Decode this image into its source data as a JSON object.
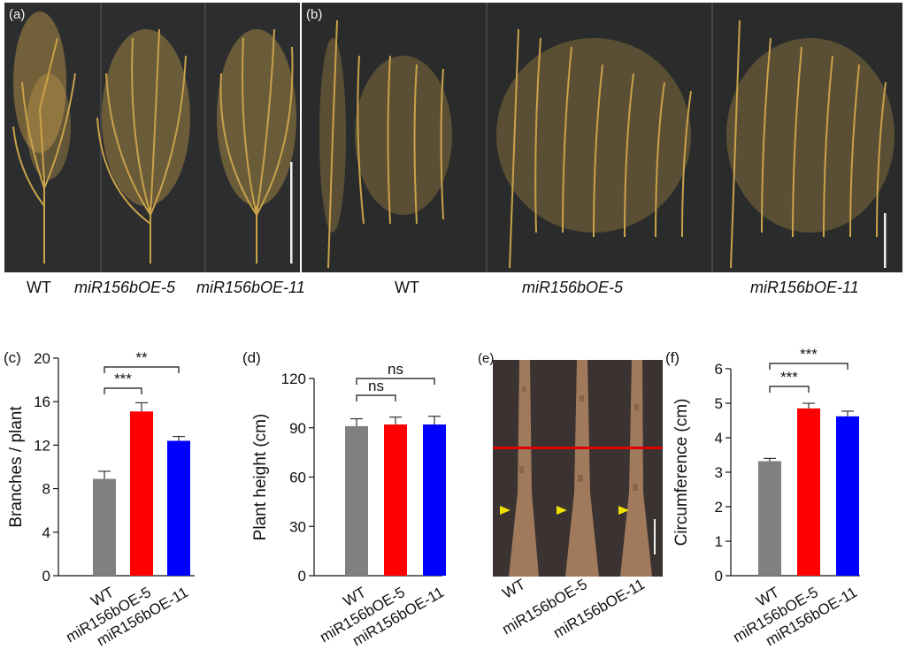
{
  "panels": {
    "a": {
      "letter": "(a)",
      "labels": [
        {
          "text": "WT",
          "italic": false
        },
        {
          "text": "miR156bOE-5",
          "italic": true
        },
        {
          "text": "miR156bOE-11",
          "italic": true
        }
      ]
    },
    "b": {
      "letter": "(b)",
      "labels": [
        {
          "text": "WT",
          "italic": false
        },
        {
          "text": "miR156bOE-5",
          "italic": true
        },
        {
          "text": "miR156bOE-11",
          "italic": true
        }
      ]
    },
    "e": {
      "letter": "(e)",
      "categories": [
        "WT",
        "miR156bOE-5",
        "miR156bOE-11"
      ]
    }
  },
  "colors": {
    "WT": "#808080",
    "miR156bOE-5": "#ff0000",
    "miR156bOE-11": "#0000ff",
    "photo_bg": "#2a2c2c",
    "plant": "#c9a24a",
    "stem": "#9a7355",
    "cut_line": "#e00000",
    "arrow": "#f0e000"
  },
  "chart_data": [
    {
      "panel": "(c)",
      "type": "bar",
      "categories": [
        "WT",
        "miR156bOE-5",
        "miR156bOE-11"
      ],
      "values": [
        8.9,
        15.1,
        12.4
      ],
      "errors": [
        0.7,
        0.8,
        0.4
      ],
      "ylabel": "Branches / plant",
      "ylim": [
        0,
        20
      ],
      "yticks": [
        "0",
        "4",
        "8",
        "12",
        "16",
        "20"
      ],
      "significance": [
        {
          "from": 0,
          "to": 1,
          "label": "***"
        },
        {
          "from": 0,
          "to": 2,
          "label": "**"
        }
      ]
    },
    {
      "panel": "(d)",
      "type": "bar",
      "categories": [
        "WT",
        "miR156bOE-5",
        "miR156bOE-11"
      ],
      "values": [
        91,
        92,
        92
      ],
      "errors": [
        4.5,
        4.5,
        5
      ],
      "ylabel": "Plant height (cm)",
      "ylim": [
        0,
        120
      ],
      "yticks": [
        "0",
        "30",
        "60",
        "90",
        "120"
      ],
      "significance": [
        {
          "from": 0,
          "to": 1,
          "label": "ns"
        },
        {
          "from": 0,
          "to": 2,
          "label": "ns"
        }
      ]
    },
    {
      "panel": "(f)",
      "type": "bar",
      "categories": [
        "WT",
        "miR156bOE-5",
        "miR156bOE-11"
      ],
      "values": [
        3.32,
        4.85,
        4.62
      ],
      "errors": [
        0.08,
        0.15,
        0.15
      ],
      "ylabel": "Circumference (cm)",
      "ylim": [
        0,
        6
      ],
      "yticks": [
        "0",
        "1",
        "2",
        "3",
        "4",
        "5",
        "6"
      ],
      "significance": [
        {
          "from": 0,
          "to": 1,
          "label": "***"
        },
        {
          "from": 0,
          "to": 2,
          "label": "***"
        }
      ]
    }
  ]
}
